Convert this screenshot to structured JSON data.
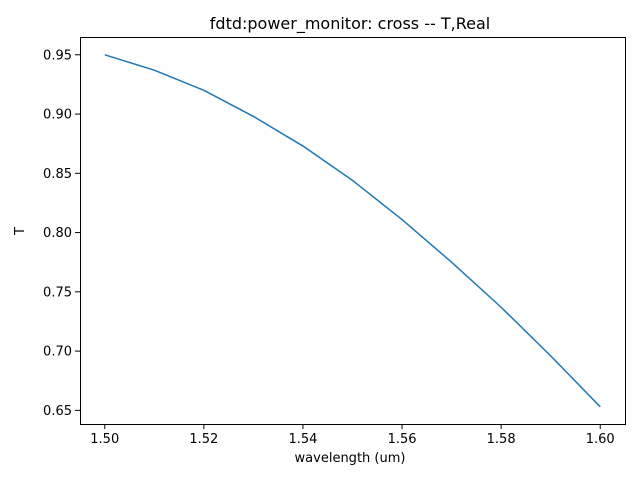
{
  "chart_data": {
    "type": "line",
    "title": "fdtd:power_monitor: cross -- T,Real",
    "xlabel": "wavelength (um)",
    "ylabel": "T",
    "xlim": [
      1.495,
      1.605
    ],
    "ylim": [
      0.6385,
      0.965
    ],
    "xticks": [
      1.5,
      1.52,
      1.54,
      1.56,
      1.58,
      1.6
    ],
    "xtick_labels": [
      "1.50",
      "1.52",
      "1.54",
      "1.56",
      "1.58",
      "1.60"
    ],
    "yticks": [
      0.65,
      0.7,
      0.75,
      0.8,
      0.85,
      0.9,
      0.95
    ],
    "ytick_labels": [
      "0.65",
      "0.70",
      "0.75",
      "0.80",
      "0.85",
      "0.90",
      "0.95"
    ],
    "grid": false,
    "series": [
      {
        "color": "#1f77b4",
        "x": [
          1.5,
          1.51,
          1.52,
          1.53,
          1.54,
          1.55,
          1.56,
          1.57,
          1.58,
          1.59,
          1.6
        ],
        "y": [
          0.95,
          0.937,
          0.92,
          0.898,
          0.873,
          0.844,
          0.811,
          0.775,
          0.737,
          0.696,
          0.653
        ]
      }
    ]
  }
}
